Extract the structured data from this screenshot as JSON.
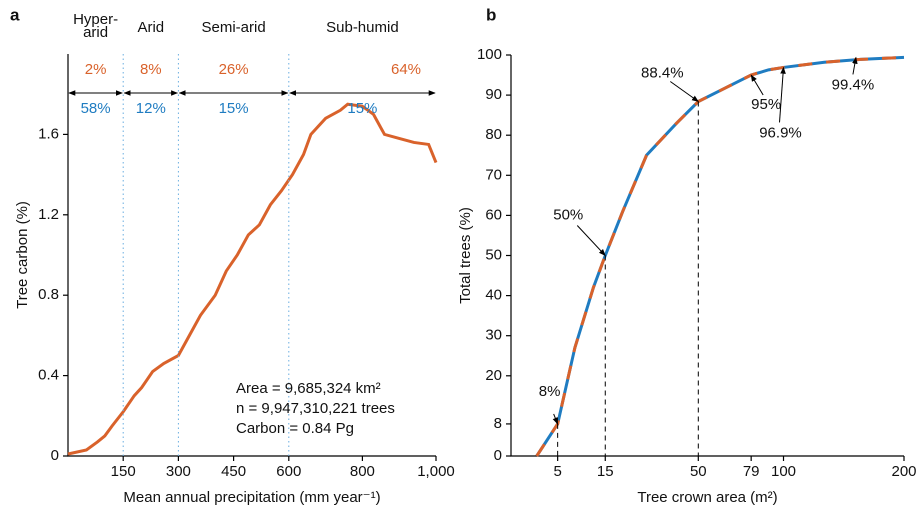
{
  "chart_data": [
    {
      "type": "line",
      "panel": "a",
      "y_label": "Tree carbon (%)",
      "x_label": "Mean annual precipitation (mm year⁻¹)",
      "x": [
        0,
        50,
        80,
        100,
        120,
        150,
        180,
        200,
        230,
        260,
        300,
        330,
        360,
        400,
        430,
        460,
        490,
        520,
        550,
        580,
        610,
        640,
        660,
        700,
        740,
        760,
        800,
        830,
        860,
        900,
        940,
        980,
        1000
      ],
      "series": [
        {
          "color": "#d9622b",
          "values": [
            0.01,
            0.03,
            0.07,
            0.1,
            0.15,
            0.22,
            0.3,
            0.34,
            0.42,
            0.46,
            0.5,
            0.6,
            0.7,
            0.8,
            0.92,
            1.0,
            1.1,
            1.15,
            1.25,
            1.32,
            1.4,
            1.5,
            1.6,
            1.68,
            1.72,
            1.75,
            1.74,
            1.7,
            1.6,
            1.58,
            1.56,
            1.55,
            1.46
          ]
        }
      ],
      "xlim": [
        0,
        1000
      ],
      "xticks": [
        150,
        300,
        450,
        600,
        800,
        {
          "value": 1000,
          "label": "1,000"
        }
      ],
      "ylim": [
        0,
        2
      ],
      "yticks": [
        0,
        0.4,
        0.8,
        1.2,
        1.6
      ],
      "zone_names": [
        [
          "Hyper-",
          "arid"
        ],
        "Arid",
        "Semi-arid",
        "Sub-humid"
      ],
      "zone_bounds": [
        0,
        150,
        300,
        600,
        1000
      ],
      "zone_line_color": "#6aaee0",
      "carbon_share": {
        "values": [
          2,
          8,
          26,
          64
        ],
        "value_labels": [
          "2%",
          "8%",
          "26%",
          "64%"
        ],
        "color": "#d9622b"
      },
      "tree_share": {
        "values": [
          58,
          12,
          15,
          15
        ],
        "value_labels": [
          "58%",
          "12%",
          "15%",
          "15%"
        ],
        "color": "#1f7cc1"
      },
      "annotations": [
        "Area = 9,685,324 km²",
        "n = 9,947,310,221 trees",
        "Carbon = 0.84 Pg"
      ]
    },
    {
      "type": "line",
      "panel": "b",
      "y_label": "Total trees (%)",
      "x_label": "Tree crown area (m²)",
      "x_scale": "sqrt",
      "x": [
        2.3,
        5,
        8,
        12,
        15,
        20,
        28,
        40,
        50,
        65,
        79,
        90,
        100,
        130,
        160,
        200
      ],
      "series": [
        {
          "color": "#1f7cc1",
          "dash_color": "#d9622b",
          "values": [
            0,
            8,
            27,
            42,
            50,
            61,
            75,
            83,
            88.4,
            92,
            95,
            96.3,
            96.9,
            98.2,
            98.9,
            99.4
          ]
        }
      ],
      "xlim": [
        0.4,
        200
      ],
      "xticks": [
        5,
        15,
        50,
        79,
        100,
        200
      ],
      "ylim": [
        0,
        100
      ],
      "yticks": [
        0,
        8,
        20,
        30,
        40,
        50,
        60,
        70,
        80,
        90,
        100
      ],
      "annotations": [
        {
          "label": "8%",
          "x": 5,
          "y": 8
        },
        {
          "label": "50%",
          "x": 15,
          "y": 50
        },
        {
          "label": "88.4%",
          "x": 50,
          "y": 88.4
        },
        {
          "label": "95%",
          "x": 79,
          "y": 95
        },
        {
          "label": "96.9%",
          "x": 100,
          "y": 96.9
        },
        {
          "label": "99.4%",
          "x": 156,
          "y": 99.4
        }
      ]
    }
  ]
}
